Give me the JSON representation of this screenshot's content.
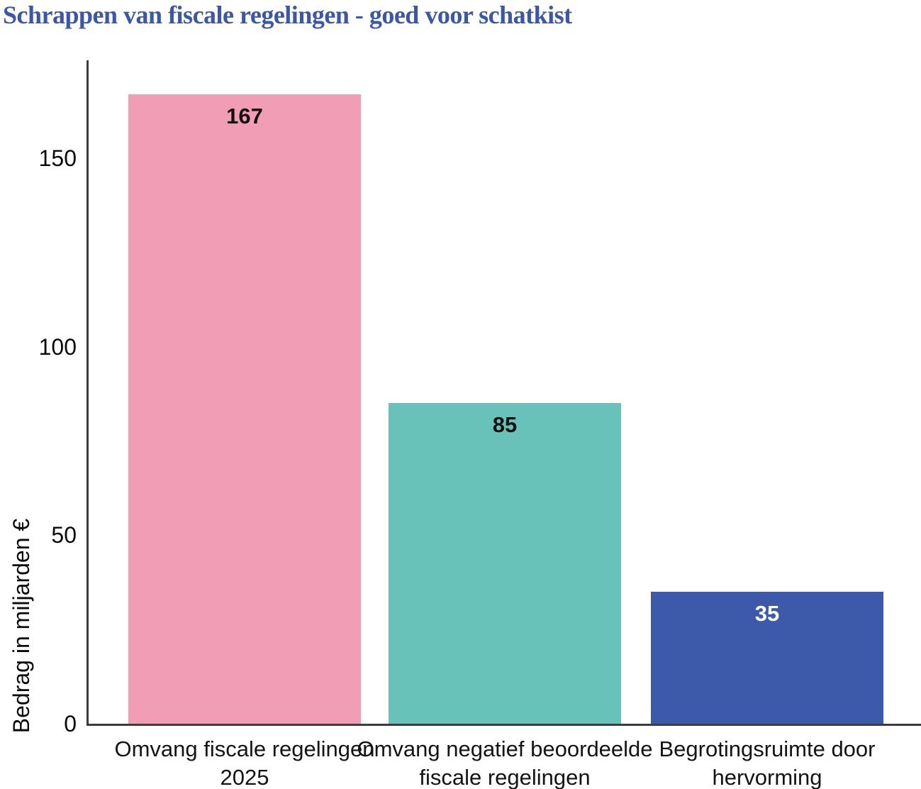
{
  "chart_data": {
    "type": "bar",
    "title": "Schrappen van fiscale regelingen - goed voor schatkist",
    "categories": [
      "Omvang fiscale regelingen 2025",
      "Omvang negatief beoordeelde fiscale regelingen",
      "Begrotingsruimte door hervorming"
    ],
    "values": [
      167,
      85,
      35
    ],
    "bar_colors": [
      "#F09DB5",
      "#69C2B9",
      "#3C5AA9"
    ],
    "value_label_colors": [
      "#111111",
      "#111111",
      "#FFFFFF"
    ],
    "xlabel": "",
    "ylabel": "Bedrag in miljarden €",
    "yticks": [
      0,
      50,
      100,
      150
    ],
    "ylim": [
      0,
      176
    ],
    "grid": false,
    "legend": null
  },
  "colors": {
    "title": "#3A57A8",
    "axis": "#3D3D3D",
    "tick_text": "#0A0A0A",
    "category_text": "#141414",
    "background": "#FFFFFF"
  }
}
